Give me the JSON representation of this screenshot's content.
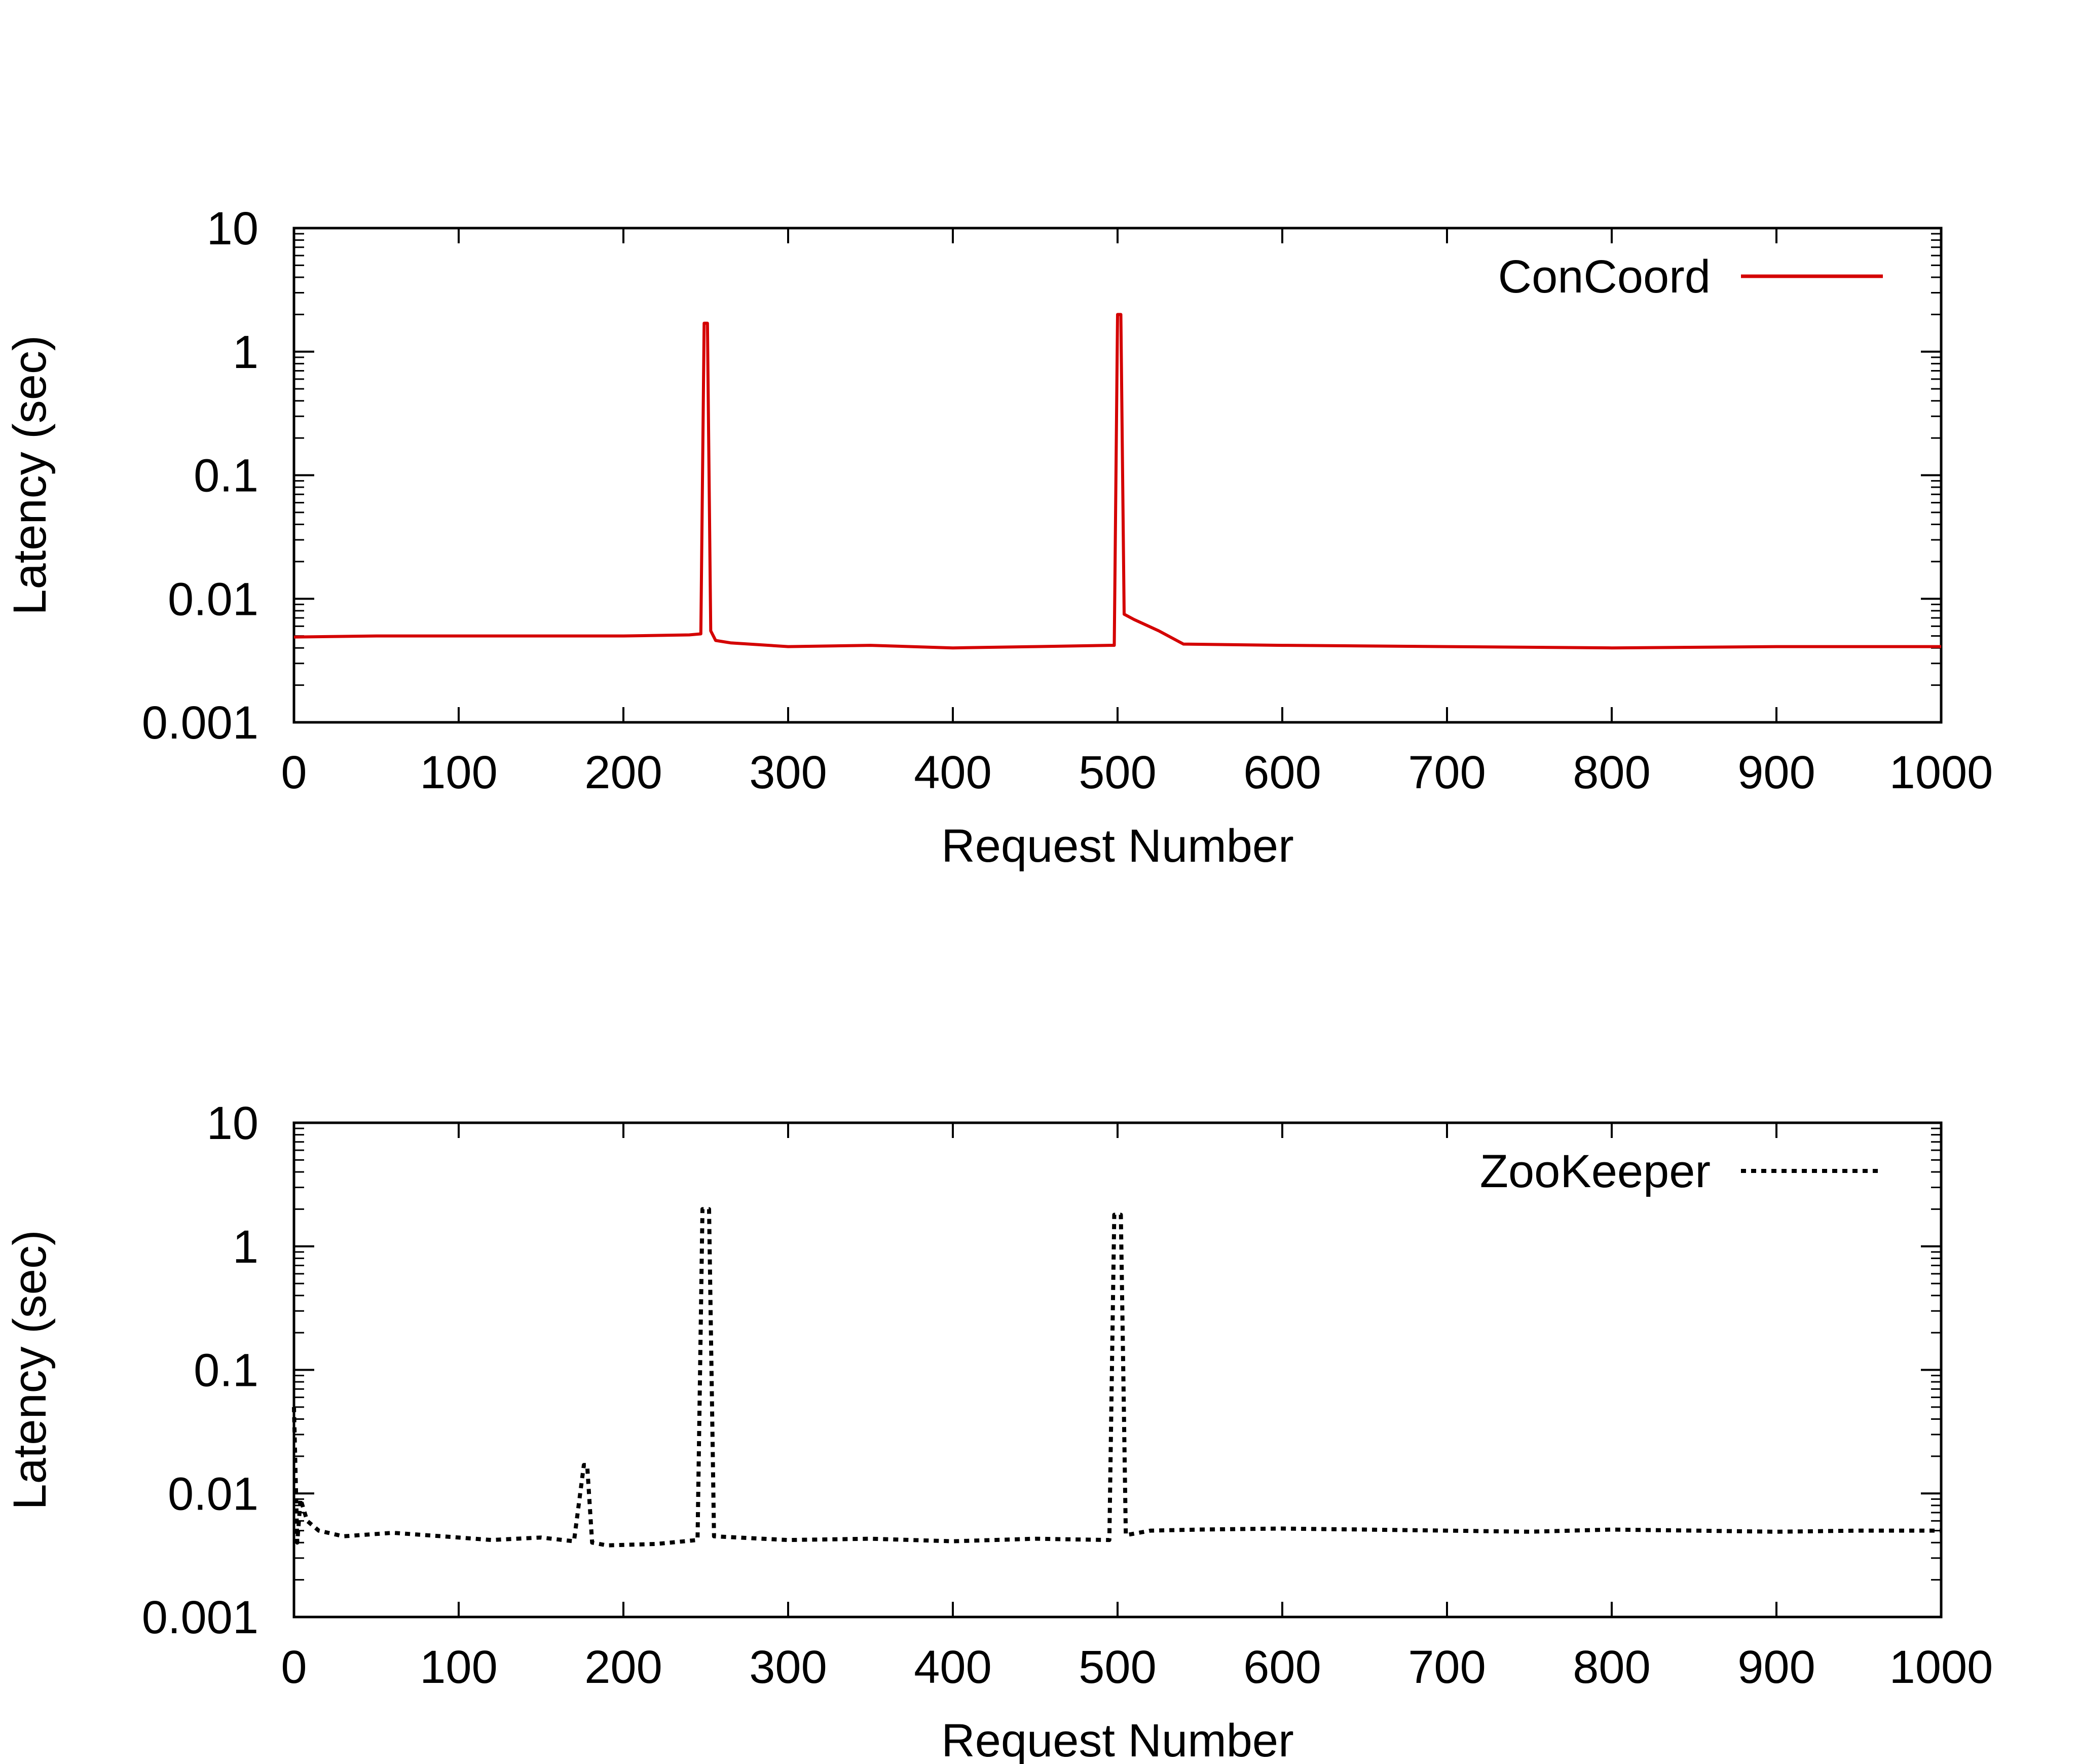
{
  "chart_data": [
    {
      "type": "line",
      "title": "",
      "xlabel": "Request Number",
      "ylabel": "Latency (sec)",
      "xlim": [
        0,
        1000
      ],
      "ylim": [
        0.001,
        10
      ],
      "y_scale": "log",
      "x_ticks": [
        "0",
        "100",
        "200",
        "300",
        "400",
        "500",
        "600",
        "700",
        "800",
        "900",
        "1000"
      ],
      "y_ticks": [
        "0.001",
        "0.01",
        "0.1",
        "1",
        "10"
      ],
      "legend_position": "top-right",
      "grid": false,
      "series": [
        {
          "name": "ConCoord",
          "color": "#d40000",
          "style": "solid",
          "x": [
            0,
            50,
            100,
            150,
            200,
            240,
            247,
            249,
            251,
            253,
            256,
            265,
            300,
            350,
            400,
            450,
            495,
            498,
            500,
            502,
            504,
            510,
            525,
            540,
            600,
            700,
            800,
            900,
            1000
          ],
          "y": [
            0.0049,
            0.005,
            0.005,
            0.005,
            0.005,
            0.0051,
            0.0052,
            1.7,
            1.7,
            0.0055,
            0.0046,
            0.0044,
            0.0041,
            0.0042,
            0.004,
            0.0041,
            0.0042,
            0.0042,
            2.0,
            2.0,
            0.0075,
            0.0068,
            0.0055,
            0.0043,
            0.0042,
            0.0041,
            0.004,
            0.0041,
            0.0041
          ]
        }
      ]
    },
    {
      "type": "line",
      "title": "",
      "xlabel": "Request Number",
      "ylabel": "Latency (sec)",
      "xlim": [
        0,
        1000
      ],
      "ylim": [
        0.001,
        10
      ],
      "y_scale": "log",
      "x_ticks": [
        "0",
        "100",
        "200",
        "300",
        "400",
        "500",
        "600",
        "700",
        "800",
        "900",
        "1000"
      ],
      "y_ticks": [
        "0.001",
        "0.01",
        "0.1",
        "1",
        "10"
      ],
      "legend_position": "top-right",
      "grid": false,
      "series": [
        {
          "name": "ZooKeeper",
          "color": "#000000",
          "style": "dotted",
          "x": [
            0,
            2,
            4,
            8,
            15,
            30,
            60,
            90,
            120,
            150,
            170,
            176,
            178,
            181,
            190,
            220,
            245,
            248,
            252,
            255,
            270,
            300,
            350,
            400,
            450,
            495,
            498,
            502,
            505,
            520,
            550,
            600,
            650,
            700,
            750,
            800,
            850,
            900,
            950,
            1000
          ],
          "y": [
            0.05,
            0.004,
            0.009,
            0.006,
            0.005,
            0.0045,
            0.0048,
            0.0045,
            0.0042,
            0.0044,
            0.0041,
            0.017,
            0.017,
            0.004,
            0.0038,
            0.0039,
            0.0042,
            2.0,
            2.0,
            0.0045,
            0.0044,
            0.0042,
            0.0043,
            0.0041,
            0.0043,
            0.0042,
            1.8,
            1.8,
            0.0046,
            0.005,
            0.0051,
            0.0052,
            0.0051,
            0.005,
            0.0049,
            0.0051,
            0.005,
            0.0049,
            0.005,
            0.005
          ]
        }
      ]
    }
  ]
}
